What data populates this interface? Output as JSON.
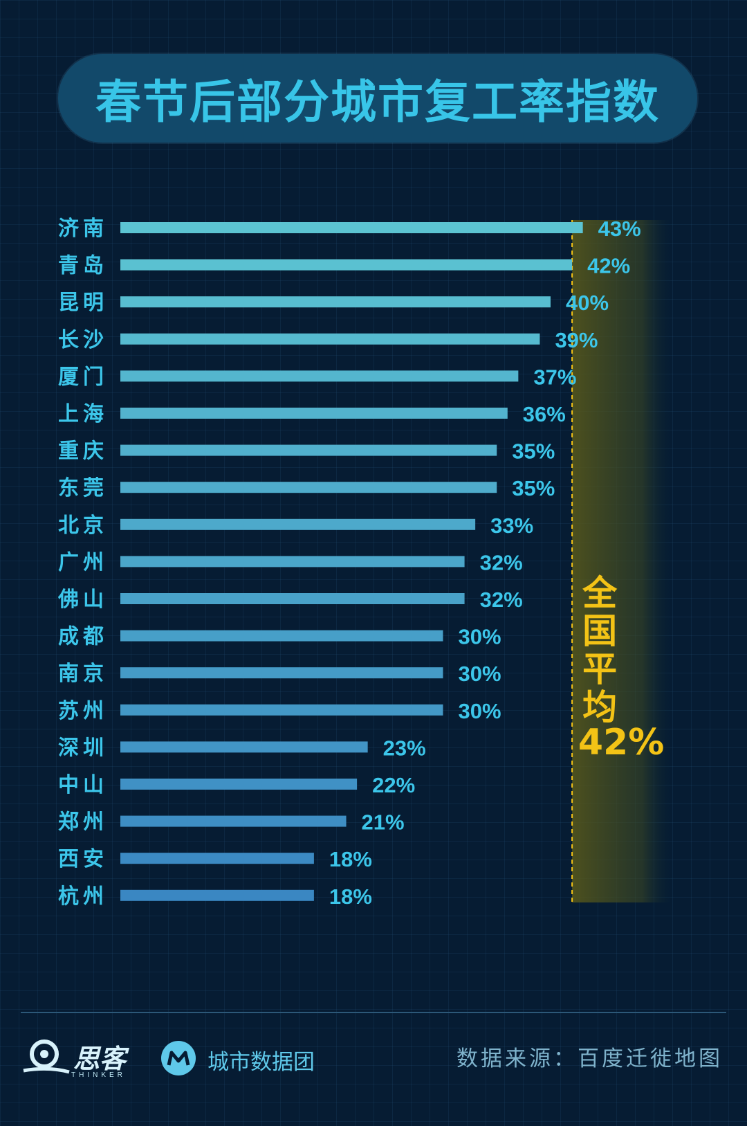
{
  "title": "春节后部分城市复工率指数",
  "chart_data": {
    "type": "bar",
    "orientation": "horizontal",
    "categories": [
      "济南",
      "青岛",
      "昆明",
      "长沙",
      "厦门",
      "上海",
      "重庆",
      "东莞",
      "北京",
      "广州",
      "佛山",
      "成都",
      "南京",
      "苏州",
      "深圳",
      "中山",
      "郑州",
      "西安",
      "杭州"
    ],
    "values": [
      43,
      42,
      40,
      39,
      37,
      36,
      35,
      35,
      33,
      32,
      32,
      30,
      30,
      30,
      23,
      22,
      21,
      18,
      18
    ],
    "value_labels": [
      "43%",
      "42%",
      "40%",
      "39%",
      "37%",
      "36%",
      "35%",
      "35%",
      "33%",
      "32%",
      "32%",
      "30%",
      "30%",
      "30%",
      "23%",
      "22%",
      "21%",
      "18%",
      "18%"
    ],
    "reference_line": {
      "label_lines": [
        "全",
        "国",
        "平",
        "均"
      ],
      "value_label": "42%",
      "value": 42,
      "color": "#f3c316"
    },
    "bar_color_top": "#5cc4d2",
    "bar_color_bottom": "#3a87c2",
    "label_color": "#3cc6ea"
  },
  "footer": {
    "brand1_name": "思客",
    "brand1_sub": "THINKER",
    "brand2_name": "城市数据团",
    "source": "数据来源：百度迁徙地图"
  }
}
